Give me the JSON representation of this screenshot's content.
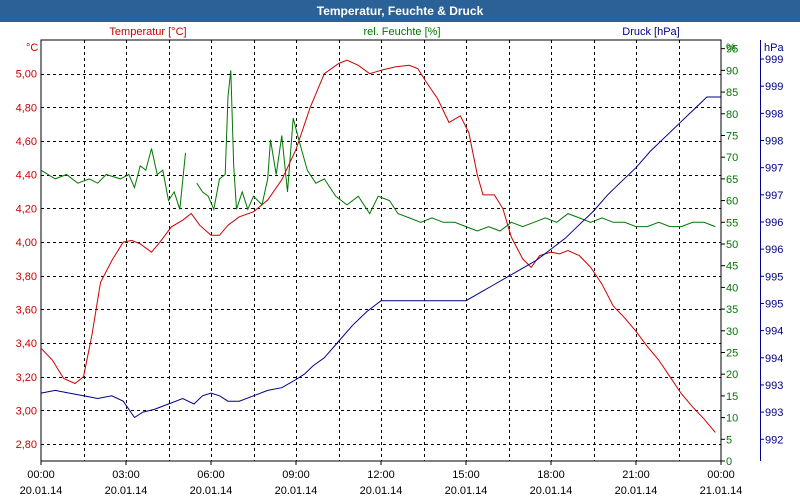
{
  "window": {
    "title": "Temperatur, Feuchte & Druck"
  },
  "chart_data": {
    "type": "line",
    "title": "Temperatur, Feuchte & Druck",
    "x_tick_labels": [
      [
        "00:00",
        "20.01.14"
      ],
      [
        "03:00",
        "20.01.14"
      ],
      [
        "06:00",
        "20.01.14"
      ],
      [
        "09:00",
        "20.01.14"
      ],
      [
        "12:00",
        "20.01.14"
      ],
      [
        "15:00",
        "20.01.14"
      ],
      [
        "18:00",
        "20.01.14"
      ],
      [
        "21:00",
        "20.01.14"
      ],
      [
        "00:00",
        "21.01.14"
      ]
    ],
    "xlim_hours": [
      0,
      24
    ],
    "axes": {
      "temperature": {
        "unit_label": "°C",
        "range": [
          2.7,
          5.2
        ],
        "ticks": [
          "2,80",
          "3,00",
          "3,20",
          "3,40",
          "3,60",
          "3,80",
          "4,00",
          "4,20",
          "4,40",
          "4,60",
          "4,80",
          "5,00"
        ],
        "color": "#cc0000"
      },
      "humidity": {
        "unit_label": "%",
        "range": [
          0,
          97
        ],
        "ticks": [
          "0",
          "5",
          "10",
          "15",
          "20",
          "25",
          "30",
          "35",
          "40",
          "45",
          "50",
          "55",
          "60",
          "65",
          "70",
          "75",
          "80",
          "85",
          "90",
          "95"
        ],
        "color": "#007700"
      },
      "pressure": {
        "unit_label": "hPa",
        "range": [
          991.6,
          999.35
        ],
        "ticks": [
          "992",
          "993",
          "993",
          "994",
          "994",
          "995",
          "995",
          "996",
          "996",
          "997",
          "997",
          "998",
          "998",
          "999",
          "999"
        ],
        "color": "#00008b"
      }
    },
    "series": [
      {
        "name": "Temperatur [°C]",
        "axis": "temperature",
        "color": "#cc0000",
        "points": [
          [
            0,
            3.37
          ],
          [
            0.4,
            3.3
          ],
          [
            0.8,
            3.19
          ],
          [
            1.2,
            3.16
          ],
          [
            1.5,
            3.2
          ],
          [
            1.8,
            3.45
          ],
          [
            2.1,
            3.76
          ],
          [
            2.5,
            3.89
          ],
          [
            2.9,
            4.0
          ],
          [
            3.2,
            4.01
          ],
          [
            3.5,
            3.99
          ],
          [
            3.9,
            3.94
          ],
          [
            4.2,
            4.0
          ],
          [
            4.6,
            4.09
          ],
          [
            5.0,
            4.13
          ],
          [
            5.3,
            4.17
          ],
          [
            5.6,
            4.1
          ],
          [
            6.0,
            4.04
          ],
          [
            6.3,
            4.04
          ],
          [
            6.6,
            4.1
          ],
          [
            7.0,
            4.15
          ],
          [
            7.5,
            4.18
          ],
          [
            8.0,
            4.25
          ],
          [
            8.5,
            4.37
          ],
          [
            9.0,
            4.55
          ],
          [
            9.5,
            4.8
          ],
          [
            10.0,
            5.0
          ],
          [
            10.5,
            5.06
          ],
          [
            10.8,
            5.08
          ],
          [
            11.2,
            5.05
          ],
          [
            11.6,
            5.0
          ],
          [
            12.0,
            5.02
          ],
          [
            12.5,
            5.04
          ],
          [
            13.0,
            5.05
          ],
          [
            13.3,
            5.03
          ],
          [
            13.6,
            4.95
          ],
          [
            14.0,
            4.85
          ],
          [
            14.4,
            4.71
          ],
          [
            14.8,
            4.75
          ],
          [
            15.1,
            4.65
          ],
          [
            15.4,
            4.4
          ],
          [
            15.6,
            4.28
          ],
          [
            16.0,
            4.28
          ],
          [
            16.3,
            4.2
          ],
          [
            16.6,
            4.03
          ],
          [
            17.0,
            3.9
          ],
          [
            17.3,
            3.85
          ],
          [
            17.6,
            3.92
          ],
          [
            18.0,
            3.94
          ],
          [
            18.3,
            3.93
          ],
          [
            18.6,
            3.95
          ],
          [
            19.0,
            3.92
          ],
          [
            19.4,
            3.85
          ],
          [
            19.8,
            3.75
          ],
          [
            20.2,
            3.62
          ],
          [
            20.6,
            3.55
          ],
          [
            21.0,
            3.47
          ],
          [
            21.4,
            3.38
          ],
          [
            21.8,
            3.3
          ],
          [
            22.2,
            3.2
          ],
          [
            22.6,
            3.1
          ],
          [
            23.0,
            3.02
          ],
          [
            23.4,
            2.95
          ],
          [
            23.8,
            2.87
          ]
        ]
      },
      {
        "name": "rel. Feuchte [%]",
        "axis": "humidity",
        "color": "#007700",
        "segments": [
          [
            [
              0,
              67
            ],
            [
              0.5,
              65
            ],
            [
              0.9,
              66
            ],
            [
              1.3,
              64
            ],
            [
              1.7,
              65
            ],
            [
              2.0,
              64
            ],
            [
              2.3,
              66
            ],
            [
              2.8,
              65
            ],
            [
              3.1,
              66
            ],
            [
              3.3,
              63
            ],
            [
              3.5,
              68
            ],
            [
              3.7,
              67
            ],
            [
              3.9,
              72
            ],
            [
              4.1,
              66
            ],
            [
              4.3,
              67
            ],
            [
              4.5,
              60
            ],
            [
              4.7,
              62
            ],
            [
              4.9,
              58
            ],
            [
              5.1,
              71
            ]
          ],
          [
            [
              5.5,
              64
            ],
            [
              5.7,
              62
            ],
            [
              5.9,
              61
            ],
            [
              6.1,
              58
            ],
            [
              6.3,
              65
            ],
            [
              6.5,
              66
            ],
            [
              6.6,
              84
            ],
            [
              6.7,
              90
            ],
            [
              6.8,
              68
            ],
            [
              6.9,
              58
            ],
            [
              7.1,
              62
            ],
            [
              7.3,
              58
            ],
            [
              7.5,
              61
            ],
            [
              7.8,
              59
            ],
            [
              8.0,
              65
            ],
            [
              8.1,
              74
            ],
            [
              8.3,
              66
            ],
            [
              8.5,
              75
            ],
            [
              8.7,
              62
            ],
            [
              8.9,
              79
            ],
            [
              9.1,
              74
            ],
            [
              9.4,
              67
            ],
            [
              9.7,
              64
            ],
            [
              10.0,
              65
            ],
            [
              10.4,
              61
            ],
            [
              10.8,
              59
            ],
            [
              11.2,
              61
            ],
            [
              11.6,
              57
            ],
            [
              11.9,
              61
            ],
            [
              12.3,
              60
            ],
            [
              12.6,
              57
            ],
            [
              13.0,
              56
            ],
            [
              13.4,
              55
            ],
            [
              13.8,
              56
            ],
            [
              14.2,
              55
            ],
            [
              14.6,
              55
            ],
            [
              15.0,
              54
            ],
            [
              15.4,
              53
            ],
            [
              15.8,
              54
            ],
            [
              16.2,
              53
            ],
            [
              16.6,
              55
            ],
            [
              17.0,
              54
            ],
            [
              17.4,
              55
            ],
            [
              17.8,
              56
            ],
            [
              18.2,
              55
            ],
            [
              18.6,
              57
            ],
            [
              19.0,
              56
            ],
            [
              19.4,
              55
            ],
            [
              19.8,
              56
            ],
            [
              20.2,
              55
            ],
            [
              20.6,
              55
            ],
            [
              21.0,
              54
            ],
            [
              21.4,
              54
            ],
            [
              21.8,
              55
            ],
            [
              22.2,
              54
            ],
            [
              22.6,
              54
            ],
            [
              23.0,
              55
            ],
            [
              23.4,
              55
            ],
            [
              23.8,
              54
            ]
          ]
        ]
      },
      {
        "name": "Druck [hPa]",
        "axis": "pressure",
        "color": "#00008b",
        "points": [
          [
            0,
            992.85
          ],
          [
            0.5,
            992.9
          ],
          [
            1.0,
            992.85
          ],
          [
            1.5,
            992.8
          ],
          [
            2.0,
            992.75
          ],
          [
            2.5,
            992.8
          ],
          [
            2.9,
            992.7
          ],
          [
            3.3,
            992.4
          ],
          [
            3.6,
            992.5
          ],
          [
            4.0,
            992.55
          ],
          [
            4.5,
            992.65
          ],
          [
            5.0,
            992.75
          ],
          [
            5.4,
            992.65
          ],
          [
            5.7,
            992.8
          ],
          [
            6.0,
            992.85
          ],
          [
            6.3,
            992.8
          ],
          [
            6.6,
            992.7
          ],
          [
            7.0,
            992.7
          ],
          [
            7.5,
            992.8
          ],
          [
            8.0,
            992.9
          ],
          [
            8.5,
            992.95
          ],
          [
            9.0,
            993.1
          ],
          [
            9.3,
            993.2
          ],
          [
            9.6,
            993.35
          ],
          [
            10.0,
            993.5
          ],
          [
            10.5,
            993.8
          ],
          [
            11.0,
            994.1
          ],
          [
            11.5,
            994.35
          ],
          [
            12.0,
            994.55
          ],
          [
            12.5,
            994.55
          ],
          [
            13.0,
            994.55
          ],
          [
            13.5,
            994.55
          ],
          [
            14.0,
            994.55
          ],
          [
            14.5,
            994.55
          ],
          [
            15.0,
            994.55
          ],
          [
            15.5,
            994.7
          ],
          [
            16.0,
            994.85
          ],
          [
            16.5,
            995.0
          ],
          [
            17.0,
            995.15
          ],
          [
            17.5,
            995.3
          ],
          [
            18.0,
            995.5
          ],
          [
            18.5,
            995.7
          ],
          [
            19.0,
            995.95
          ],
          [
            19.5,
            996.2
          ],
          [
            20.0,
            996.5
          ],
          [
            20.5,
            996.75
          ],
          [
            21.0,
            997.0
          ],
          [
            21.5,
            997.3
          ],
          [
            22.0,
            997.55
          ],
          [
            22.5,
            997.8
          ],
          [
            23.0,
            998.05
          ],
          [
            23.3,
            998.2
          ],
          [
            23.5,
            998.3
          ],
          [
            24.0,
            998.3
          ]
        ]
      }
    ],
    "legend": [
      "Temperatur [°C]",
      "rel. Feuchte [%]",
      "Druck [hPa]"
    ],
    "grid": true
  }
}
